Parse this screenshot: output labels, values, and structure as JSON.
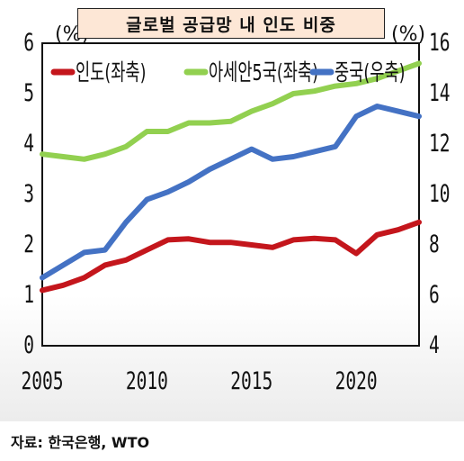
{
  "chart_data": {
    "type": "line",
    "title": "글로벌 공급망 내 인도 비중",
    "left_unit": "(%)",
    "right_unit": "(%)",
    "x": [
      2005,
      2006,
      2007,
      2008,
      2009,
      2010,
      2011,
      2012,
      2013,
      2014,
      2015,
      2016,
      2017,
      2018,
      2019,
      2020,
      2021,
      2022,
      2023
    ],
    "x_ticks": [
      "2005",
      "2010",
      "2015",
      "2020"
    ],
    "left_ticks": [
      "0",
      "1",
      "2",
      "3",
      "4",
      "5",
      "6"
    ],
    "right_ticks": [
      "4",
      "6",
      "8",
      "10",
      "12",
      "14",
      "16"
    ],
    "ylim_left": [
      0,
      6
    ],
    "ylim_right": [
      4,
      16
    ],
    "legend_position": "top",
    "series": [
      {
        "name": "인도(좌축)",
        "axis": "left",
        "color": "#c4161c",
        "values": [
          1.1,
          1.2,
          1.35,
          1.6,
          1.7,
          1.9,
          2.1,
          2.12,
          2.05,
          2.05,
          2.0,
          1.95,
          2.1,
          2.13,
          2.1,
          1.83,
          2.2,
          2.3,
          2.45
        ]
      },
      {
        "name": "아세안5국(좌축)",
        "axis": "left",
        "color": "#92d050",
        "values": [
          3.8,
          3.75,
          3.7,
          3.8,
          3.95,
          4.25,
          4.25,
          4.42,
          4.42,
          4.45,
          4.65,
          4.8,
          5.0,
          5.05,
          5.15,
          5.2,
          5.3,
          5.45,
          5.6
        ]
      },
      {
        "name": "중국(우축)",
        "axis": "right",
        "color": "#4472c4",
        "values": [
          6.7,
          7.2,
          7.7,
          7.8,
          8.9,
          9.8,
          10.1,
          10.5,
          11.0,
          11.4,
          11.8,
          11.4,
          11.5,
          11.7,
          11.9,
          13.1,
          13.5,
          13.3,
          13.1
        ]
      }
    ]
  },
  "source_text": "자료: 한국은행, WTO"
}
